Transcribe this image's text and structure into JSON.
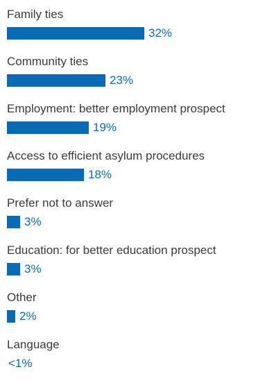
{
  "chart_data": {
    "type": "bar",
    "orientation": "horizontal",
    "categories": [
      "Family ties",
      "Community ties",
      "Employment: better employment prospect",
      "Access to efficient asylum procedures",
      "Prefer not to answer",
      "Education: for better education prospect",
      "Other",
      "Language"
    ],
    "values": [
      32,
      23,
      19,
      18,
      3,
      3,
      2,
      0.5
    ],
    "value_labels": [
      "32%",
      "23%",
      "19%",
      "18%",
      "3%",
      "3%",
      "2%",
      "<1%"
    ],
    "unit": "%",
    "xlim": [
      0,
      32
    ],
    "grid": false,
    "legend": "none",
    "bar_color": "#0a6bb5",
    "value_label_color": "#0a6bb5",
    "category_label_color": "#3a3a3a"
  }
}
